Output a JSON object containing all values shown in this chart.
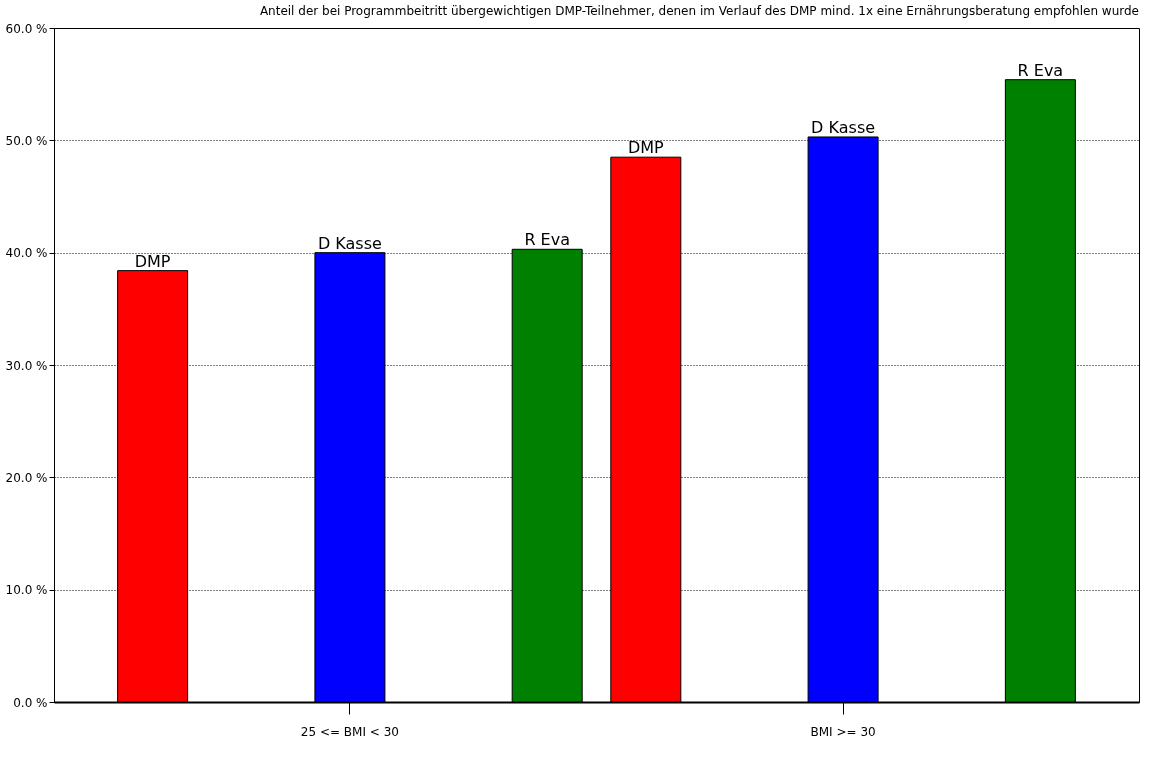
{
  "chart_data": {
    "type": "bar",
    "title": "Anteil der bei Programmbeitritt übergewichtigen DMP-Teilnehmer, denen im Verlauf des DMP mind. 1x eine Ernährungsberatung empfohlen wurde",
    "categories": [
      "25 <= BMI < 30",
      "BMI >= 30"
    ],
    "series": [
      {
        "name": "DMP",
        "color": "#ff0000",
        "values": [
          38.4,
          48.5
        ]
      },
      {
        "name": "D Kasse",
        "color": "#0000ff",
        "values": [
          40.0,
          50.3
        ]
      },
      {
        "name": "R Eva",
        "color": "#008000",
        "values": [
          40.3,
          55.4
        ]
      }
    ],
    "ylim": [
      0,
      60
    ],
    "yticks": [
      {
        "value": 0,
        "label": "0.0 %"
      },
      {
        "value": 10,
        "label": "10.0 %"
      },
      {
        "value": 20,
        "label": "20.0 %"
      },
      {
        "value": 30,
        "label": "30.0 %"
      },
      {
        "value": 40,
        "label": "40.0 %"
      },
      {
        "value": 50,
        "label": "50.0 %"
      },
      {
        "value": 60,
        "label": "60.0 %"
      }
    ],
    "grid": "y",
    "legend": false
  }
}
